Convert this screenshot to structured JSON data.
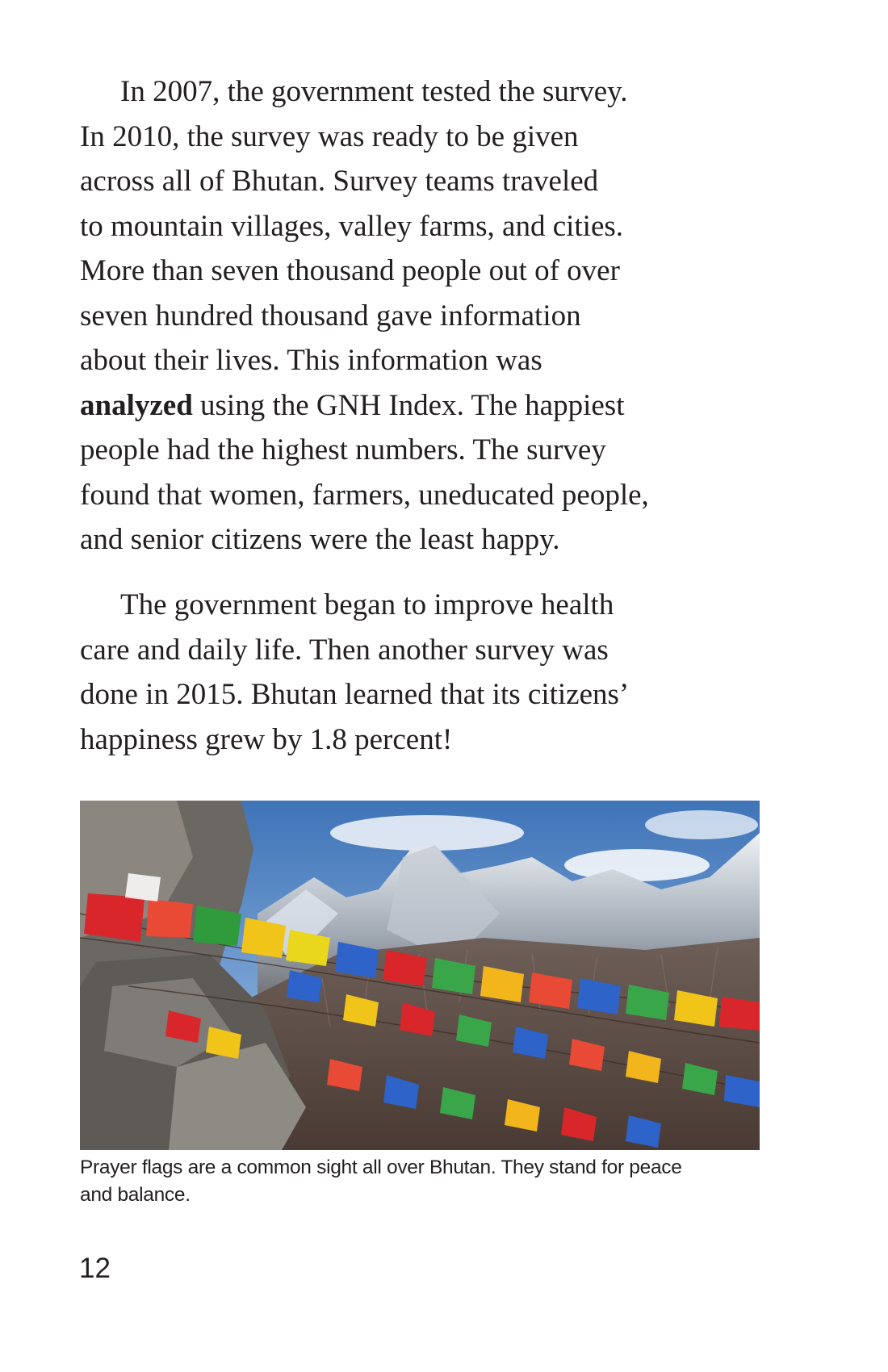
{
  "paragraph1": {
    "line1": "In 2007, the government tested the survey.",
    "line2": "In 2010, the survey was ready to be given",
    "line3": "across all of Bhutan. Survey teams traveled",
    "line4": "to mountain villages, valley farms, and cities.",
    "line5": "More than seven thousand people out of over",
    "line6": "seven hundred thousand gave information",
    "line7": "about their lives. This information was",
    "line8_bold": "analyzed",
    "line8_rest": " using the GNH Index. The happiest",
    "line9": "people had the highest numbers. The survey",
    "line10": "found that women, farmers, uneducated people,",
    "line11": "and senior citizens were the least happy."
  },
  "paragraph2": {
    "line1": "The government began to improve health",
    "line2": "care and daily life. Then another survey was",
    "line3": "done in 2015. Bhutan learned that its citizens’",
    "line4": "happiness grew by 1.8 percent!"
  },
  "photo": {
    "icon": "prayer-flags-mountain-photo"
  },
  "caption": {
    "line1": "Prayer flags are a common sight all over Bhutan. They stand for peace",
    "line2": "and balance."
  },
  "page_number": "12"
}
